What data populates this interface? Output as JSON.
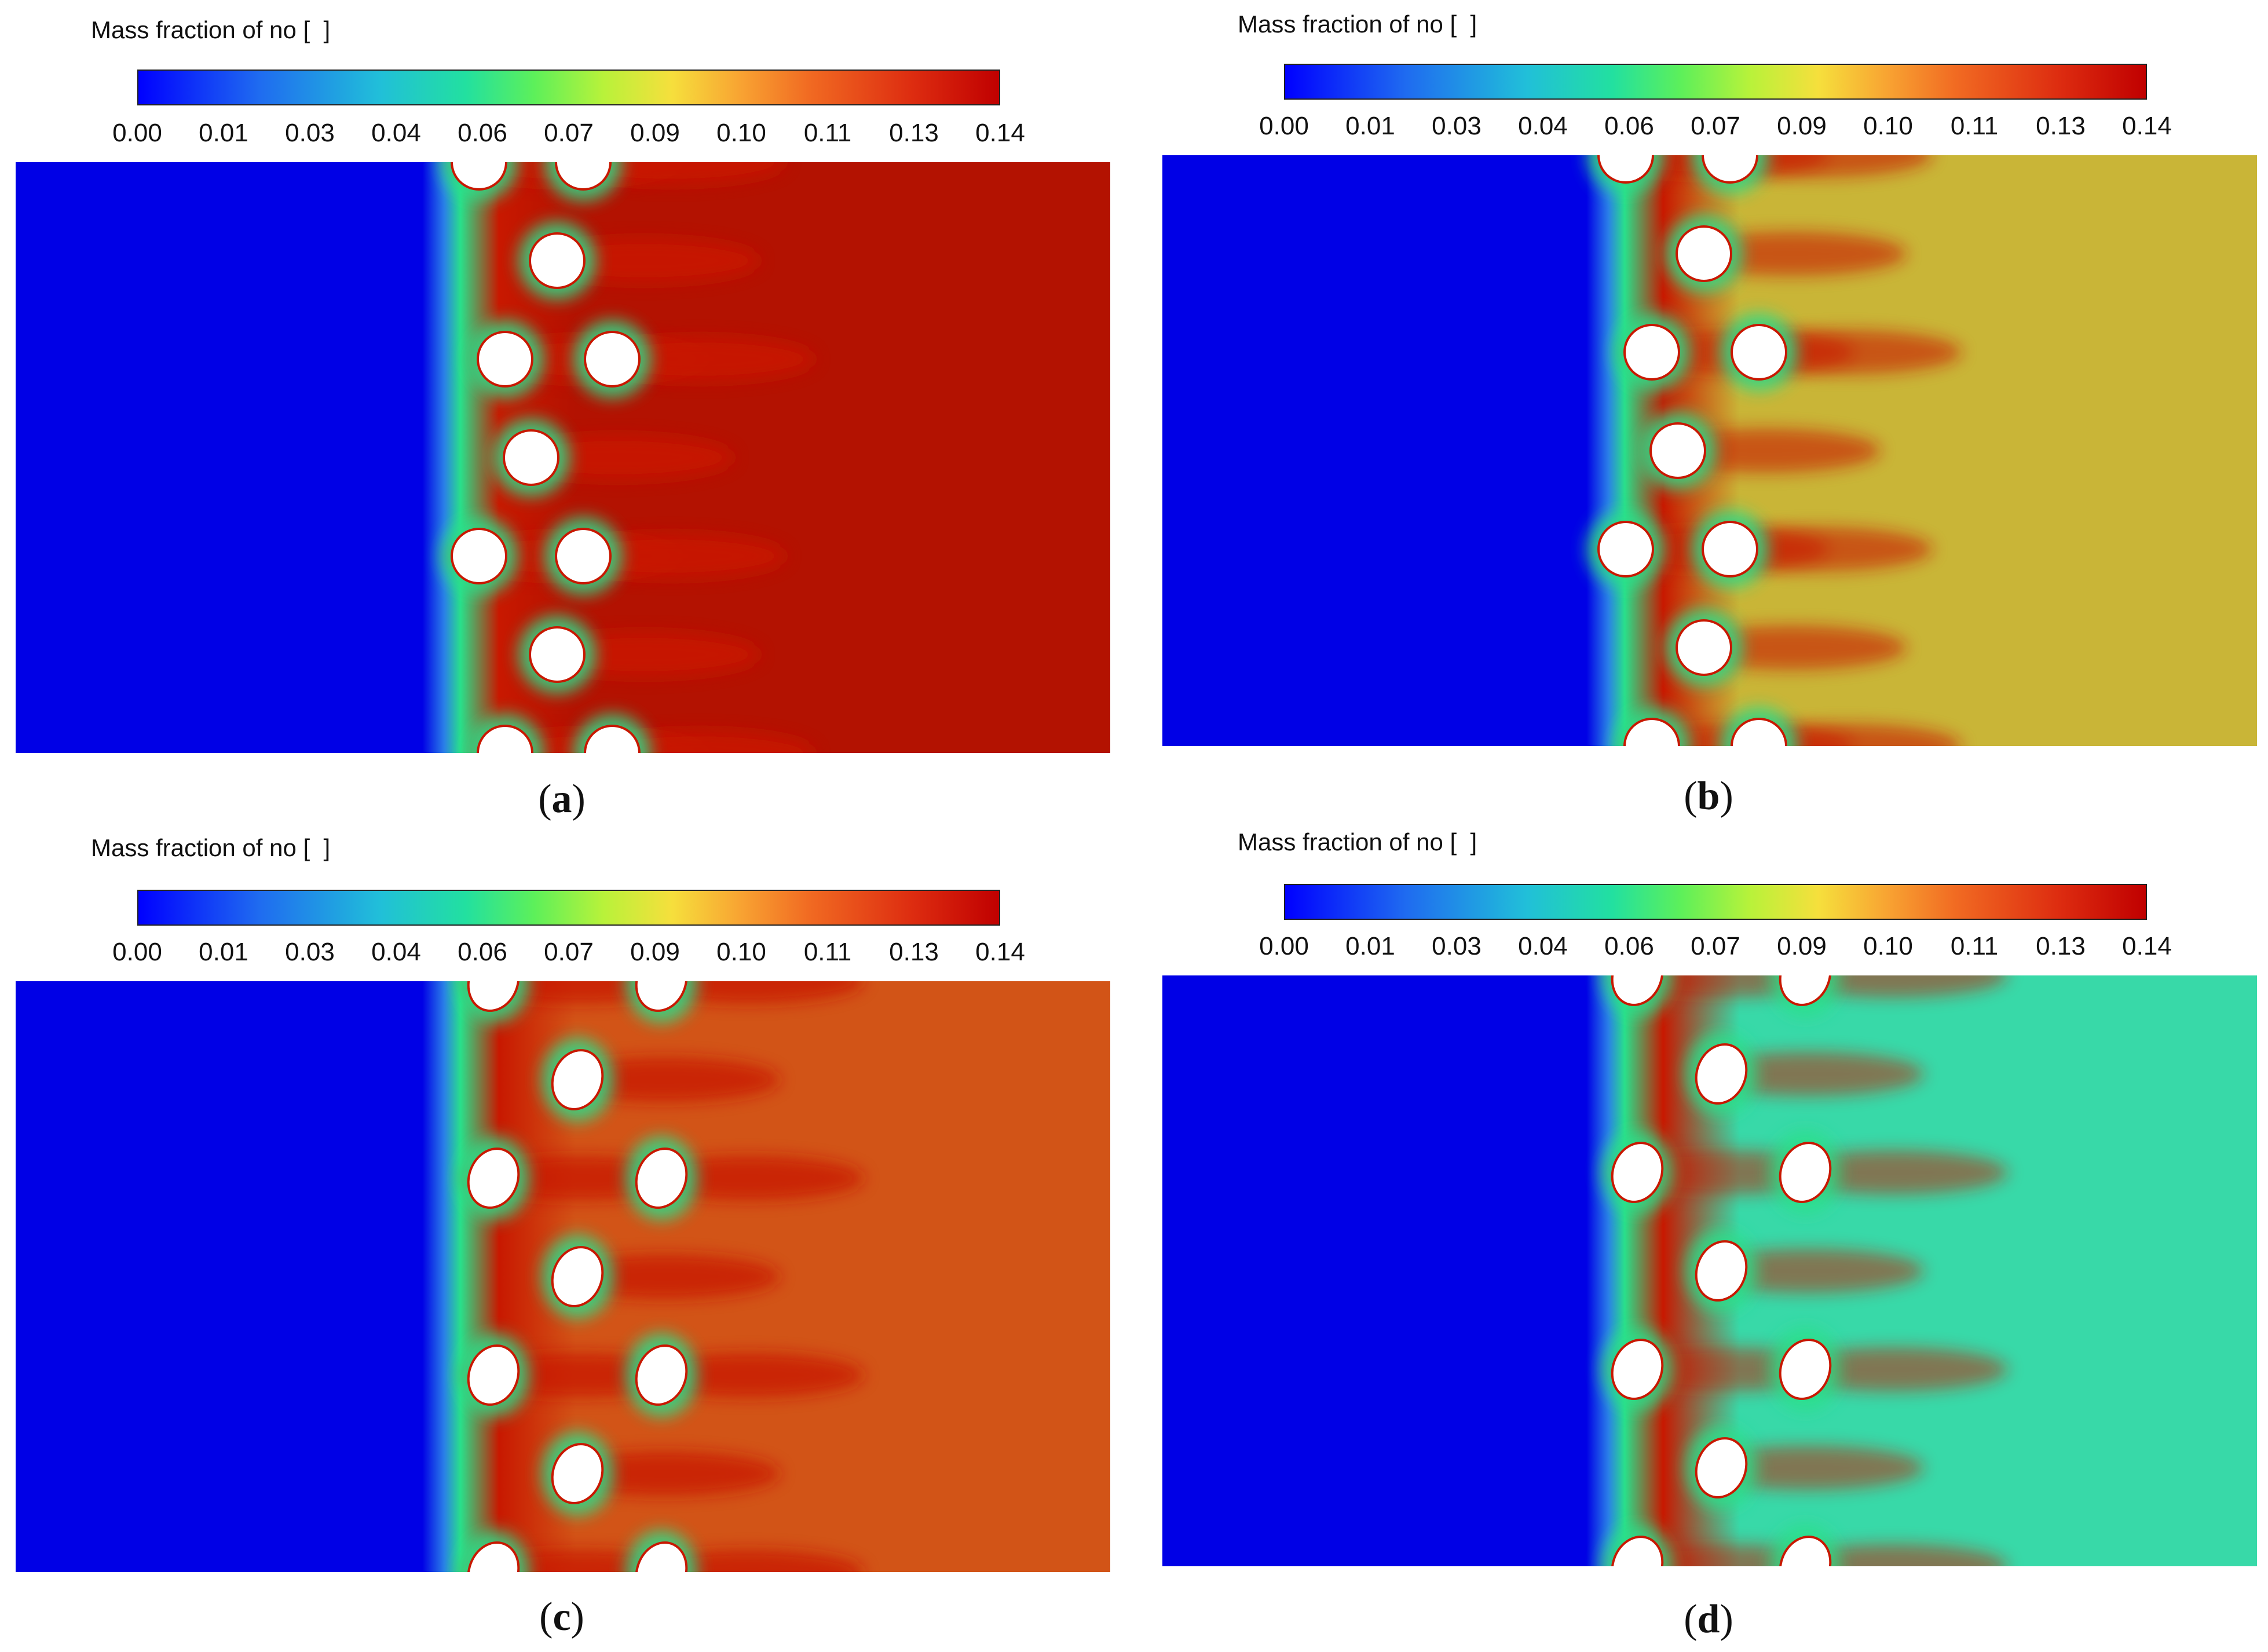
{
  "legend": {
    "title": "Mass fraction of no [  ]",
    "ticks": [
      "0.00",
      "0.01",
      "0.03",
      "0.04",
      "0.06",
      "0.07",
      "0.09",
      "0.10",
      "0.11",
      "0.13",
      "0.14"
    ]
  },
  "panels": [
    {
      "id": "a",
      "caption_letter": "a",
      "outlet_color": "#b31201"
    },
    {
      "id": "b",
      "caption_letter": "b",
      "outlet_color": "#c9b537"
    },
    {
      "id": "c",
      "caption_letter": "c",
      "outlet_color": "#d25417"
    },
    {
      "id": "d",
      "caption_letter": "d",
      "outlet_color": "#38d9a8"
    }
  ],
  "colors": {
    "inlet_blue": "#0000e6",
    "cylinder": "#ffffff",
    "front_green": "#29e08a",
    "high_red": "#c81800"
  }
}
